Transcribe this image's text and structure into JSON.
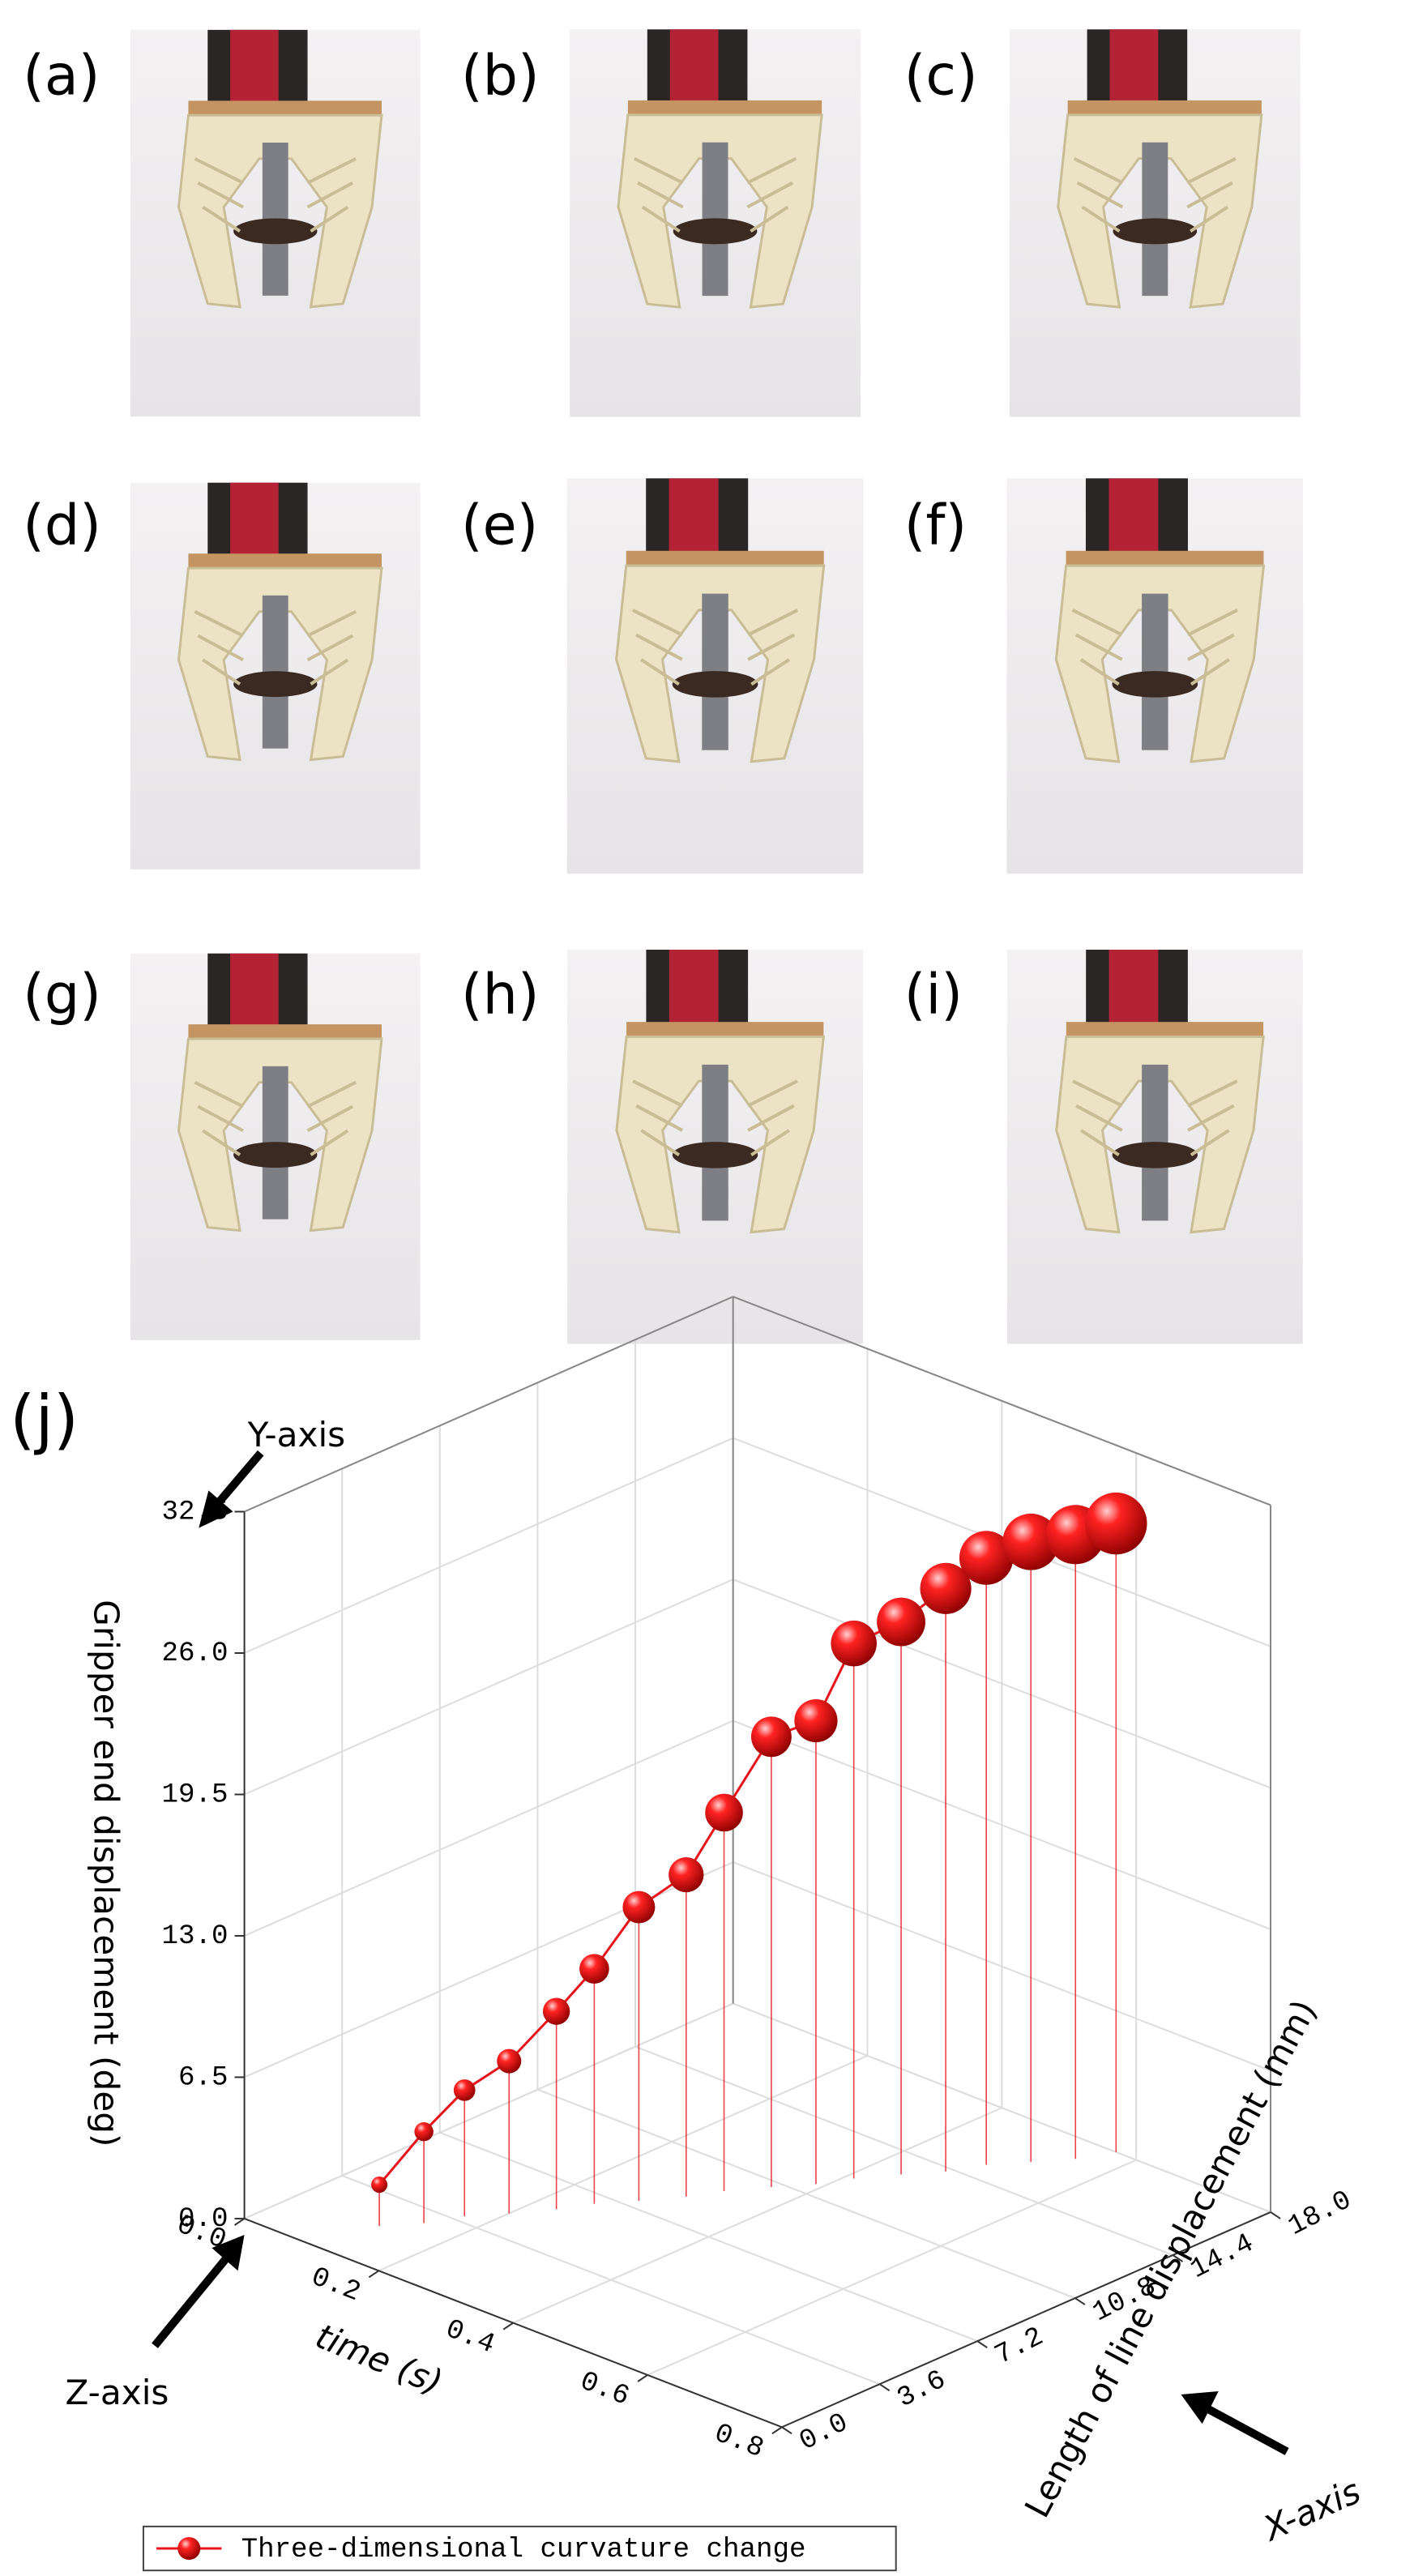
{
  "photos": {
    "labels": [
      "(a)",
      "(b)",
      "(c)",
      "(d)",
      "(e)",
      "(f)",
      "(g)",
      "(h)",
      "(i)"
    ]
  },
  "chart_data": {
    "type": "scatter3d",
    "panel_label": "(j)",
    "xlabel": "Length of line displacement (mm)",
    "ylabel": "Gripper end displacement (deg)",
    "zlabel": "time (s)",
    "annotations": [
      "Y-axis",
      "Z-axis",
      "X-axis"
    ],
    "xlim": [
      0,
      18
    ],
    "ylim": [
      0,
      32.5
    ],
    "zlim": [
      0,
      0.8
    ],
    "xticks": [
      {
        "value": 0,
        "label": "0.0"
      },
      3.6,
      7.2,
      10.8,
      14.4,
      {
        "value": 18,
        "label": "18.0"
      }
    ],
    "yticks": [
      {
        "value": 0,
        "label": "0.0"
      },
      6.5,
      {
        "value": 13,
        "label": "13.0"
      },
      19.5,
      {
        "value": 26,
        "label": "26.0"
      },
      32.5
    ],
    "zticks": [
      {
        "value": 0,
        "label": "0.0"
      },
      0.2,
      0.4,
      0.6,
      0.8
    ],
    "grid": true,
    "series": [
      {
        "name": "Three-dimensional curvature change",
        "color": "#e8141b",
        "x": [
          2.0,
          2.9,
          3.9,
          4.8,
          5.8,
          6.7,
          7.6,
          8.6,
          9.5,
          10.5,
          11.4,
          12.3,
          13.3,
          14.2,
          15.2,
          16.1,
          17.0,
          18.0
        ],
        "z": [
          0.12,
          0.15,
          0.17,
          0.2,
          0.23,
          0.25,
          0.28,
          0.31,
          0.33,
          0.36,
          0.39,
          0.41,
          0.44,
          0.47,
          0.49,
          0.52,
          0.55,
          0.57
        ],
        "values": [
          1.9,
          4.2,
          5.8,
          7.0,
          9.1,
          10.8,
          13.5,
          14.8,
          17.4,
          20.7,
          21.3,
          24.6,
          25.4,
          26.8,
          27.9,
          28.5,
          28.7,
          28.9
        ]
      }
    ]
  }
}
